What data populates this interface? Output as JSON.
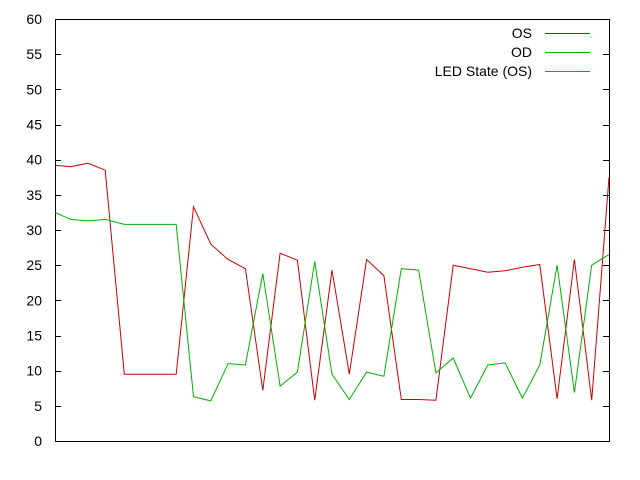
{
  "chart_data": {
    "type": "line",
    "title": "",
    "xlabel": "",
    "ylabel": "",
    "ylim": [
      0,
      60
    ],
    "yticks": [
      0,
      5,
      10,
      15,
      20,
      25,
      30,
      35,
      40,
      45,
      50,
      55,
      60
    ],
    "xlim": [
      0,
      32
    ],
    "grid": false,
    "legend_position": "top-right",
    "series": [
      {
        "name": "OS",
        "color": "#cc0000",
        "x": [
          0,
          0.9,
          1.9,
          2.9,
          4.0,
          5.0,
          6.0,
          7.0,
          8.0,
          9.0,
          10.0,
          11.0,
          12.0,
          13.0,
          14.0,
          15.0,
          16.0,
          17.0,
          18.0,
          19.0,
          20.0,
          21.0,
          22.0,
          23.0,
          24.0,
          25.0,
          26.0,
          27.0,
          28.0,
          29.0,
          30.0,
          31.0,
          32.0
        ],
        "y": [
          39.2,
          39.0,
          39.5,
          38.5,
          9.5,
          9.5,
          9.5,
          9.5,
          33.3,
          28.0,
          25.8,
          24.5,
          7.2,
          26.7,
          25.7,
          5.8,
          24.3,
          9.5,
          25.8,
          23.5,
          5.9,
          5.9,
          5.8,
          25.0,
          24.5,
          24.0,
          24.2,
          24.7,
          25.1,
          6.0,
          25.8,
          5.8,
          37.5
        ]
      },
      {
        "name": "OD",
        "color": "#00b000",
        "x": [
          0,
          0.9,
          1.9,
          2.9,
          4.0,
          5.0,
          6.0,
          7.0,
          8.0,
          9.0,
          10.0,
          11.0,
          12.0,
          13.0,
          14.0,
          15.0,
          16.0,
          17.0,
          18.0,
          19.0,
          20.0,
          21.0,
          22.0,
          23.0,
          24.0,
          25.0,
          26.0,
          27.0,
          28.0,
          29.0,
          30.0,
          31.0,
          32.0
        ],
        "y": [
          32.5,
          31.5,
          31.3,
          31.5,
          30.8,
          30.8,
          30.8,
          30.8,
          6.3,
          5.7,
          11.0,
          10.8,
          23.8,
          7.8,
          9.8,
          25.5,
          9.5,
          5.9,
          9.8,
          9.2,
          24.5,
          24.3,
          9.7,
          11.8,
          6.1,
          10.8,
          11.1,
          6.1,
          10.8,
          25.0,
          6.9,
          25.0,
          26.5
        ]
      },
      {
        "name": "LED State (OS)",
        "color": "#0088cc",
        "x": [],
        "y": []
      }
    ]
  }
}
